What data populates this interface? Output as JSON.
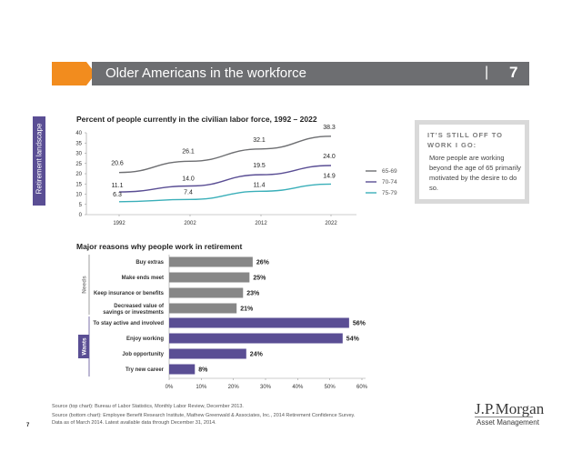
{
  "header": {
    "title": "Older Americans in the workforce",
    "separator": "|",
    "page_number": "7",
    "accent_color": "#f28c1e",
    "bar_color": "#6d6e71"
  },
  "side_tab": {
    "label": "Retirement landscape",
    "color": "#5a4e94"
  },
  "callout": {
    "heading": "IT’S STILL OFF TO WORK I GO:",
    "body": "More people are working beyond the age of 65 primarily motivated by the desire to do so."
  },
  "chart_data": [
    {
      "type": "line",
      "title": "Percent of people currently in the civilian labor force, 1992 – 2022",
      "x": [
        "1992",
        "2002",
        "2012",
        "2022"
      ],
      "ylim": [
        0,
        40
      ],
      "yticks": [
        "0",
        "5",
        "10",
        "15",
        "20",
        "25",
        "30",
        "35",
        "40"
      ],
      "legend_position": "right",
      "series": [
        {
          "name": "65-69",
          "values": [
            20.6,
            26.1,
            32.1,
            38.3
          ],
          "labels": [
            "20.6",
            "26.1",
            "32.1",
            "38.3"
          ],
          "color": "#6d6e71"
        },
        {
          "name": "70-74",
          "values": [
            11.1,
            14.0,
            19.5,
            24.0
          ],
          "labels": [
            "11.1",
            "14.0",
            "19.5",
            "24.0"
          ],
          "color": "#5a4e94"
        },
        {
          "name": "75-79",
          "values": [
            6.3,
            7.4,
            11.4,
            14.9
          ],
          "labels": [
            "6.3",
            "7.4",
            "11.4",
            "14.9"
          ],
          "color": "#3aafb9"
        }
      ]
    },
    {
      "type": "bar",
      "orientation": "horizontal",
      "title": "Major reasons why people work in retirement",
      "xlim": [
        0,
        60
      ],
      "xticks": [
        "0%",
        "10%",
        "20%",
        "30%",
        "40%",
        "50%",
        "60%"
      ],
      "groups": [
        {
          "name": "Needs",
          "color": "#878787",
          "group_label_color": "#878787"
        },
        {
          "name": "Wants",
          "color": "#5a4e94",
          "group_label_color": "#5a4e94"
        }
      ],
      "categories": [
        {
          "label": "Buy extras",
          "value": 26,
          "value_label": "26%",
          "group": "Needs"
        },
        {
          "label": "Make ends meet",
          "value": 25,
          "value_label": "25%",
          "group": "Needs"
        },
        {
          "label": "Keep insurance or benefits",
          "value": 23,
          "value_label": "23%",
          "group": "Needs"
        },
        {
          "label": "Decreased value of savings or investments",
          "label_lines": [
            "Decreased value of",
            "savings or investments"
          ],
          "value": 21,
          "value_label": "21%",
          "group": "Needs"
        },
        {
          "label": "To stay active and involved",
          "value": 56,
          "value_label": "56%",
          "group": "Wants"
        },
        {
          "label": "Enjoy working",
          "value": 54,
          "value_label": "54%",
          "group": "Wants"
        },
        {
          "label": "Job opportunity",
          "value": 24,
          "value_label": "24%",
          "group": "Wants"
        },
        {
          "label": "Try new career",
          "value": 8,
          "value_label": "8%",
          "group": "Wants"
        }
      ]
    }
  ],
  "footer": {
    "source_top": "Source (top chart): Bureau of Labor Statistics, Monthly Labor Review, December 2013.",
    "source_bottom_1": "Source (bottom chart): Employee Benefit Research Institute, Mathew Greenwald & Associates, Inc., 2014 Retirement Confidence Survey.",
    "source_bottom_2": "Data as of March 2014. Latest available data through December 31, 2014.",
    "page_number": "7"
  },
  "logo": {
    "name": "J.P.Morgan",
    "subtitle": "Asset Management"
  }
}
